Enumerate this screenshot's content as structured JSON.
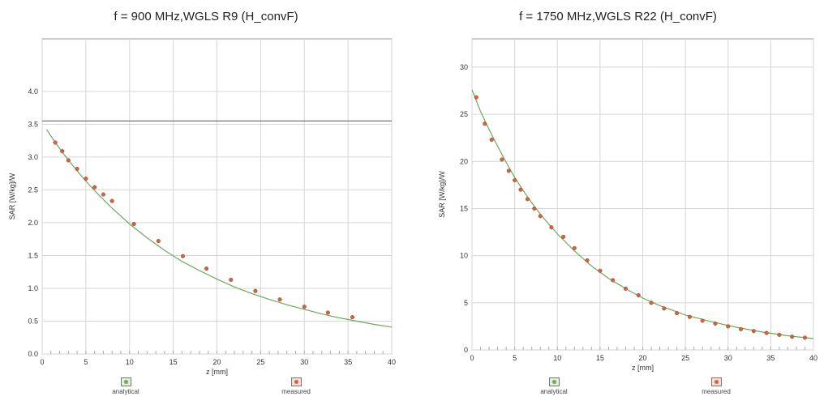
{
  "chart_data": [
    {
      "type": "scatter",
      "title": "f = 900 MHz,WGLS R9 (H_convF)",
      "xlabel": "z [mm]",
      "ylabel": "SAR [W/kg]/W",
      "xlim": [
        0,
        40
      ],
      "ylim": [
        0,
        4.8
      ],
      "xticks": [
        0,
        5,
        10,
        15,
        20,
        25,
        30,
        35,
        40
      ],
      "yticks": [
        "0.0",
        "0.5",
        "1.0",
        "1.5",
        "2.0",
        "2.5",
        "3.0",
        "3.5",
        "4.0"
      ],
      "grid": true,
      "legend_position": "bottom",
      "series": [
        {
          "name": "analytical",
          "kind": "line",
          "color": "#6fa85a",
          "x": [
            0.5,
            1.5,
            2.5,
            3.5,
            4.5,
            5.5,
            6.5,
            8,
            10,
            12,
            14,
            16,
            18,
            20,
            22,
            24,
            26,
            28,
            30,
            32,
            34,
            36,
            38,
            40
          ],
          "y": [
            3.42,
            3.22,
            3.04,
            2.87,
            2.71,
            2.56,
            2.42,
            2.22,
            1.98,
            1.77,
            1.58,
            1.41,
            1.27,
            1.14,
            1.02,
            0.92,
            0.83,
            0.75,
            0.68,
            0.61,
            0.55,
            0.5,
            0.45,
            0.41
          ]
        },
        {
          "name": "measured",
          "kind": "points",
          "color": "#d9623b",
          "x": [
            1.5,
            2.3,
            3.0,
            4.0,
            5.0,
            6.0,
            7.0,
            8.0,
            10.5,
            13.3,
            16.1,
            18.8,
            21.6,
            24.4,
            27.2,
            30.0,
            32.7,
            35.5
          ],
          "y": [
            3.22,
            3.09,
            2.95,
            2.82,
            2.67,
            2.54,
            2.43,
            2.33,
            1.98,
            1.72,
            1.49,
            1.3,
            1.13,
            0.96,
            0.83,
            0.72,
            0.63,
            0.56
          ]
        }
      ]
    },
    {
      "type": "scatter",
      "title": "f = 1750 MHz,WGLS R22 (H_convF)",
      "xlabel": "z [mm]",
      "ylabel": "SAR [W/kg]/W",
      "xlim": [
        0,
        40
      ],
      "ylim": [
        0,
        33
      ],
      "xticks": [
        0,
        5,
        10,
        15,
        20,
        25,
        30,
        35,
        40
      ],
      "yticks": [
        "0",
        "5",
        "10",
        "15",
        "20",
        "25",
        "30"
      ],
      "grid": true,
      "legend_position": "bottom",
      "series": [
        {
          "name": "analytical",
          "kind": "line",
          "color": "#6fa85a",
          "x": [
            0,
            1,
            2,
            3,
            4,
            5,
            6,
            7,
            8,
            10,
            12,
            14,
            16,
            18,
            20,
            22,
            25,
            28,
            31,
            34,
            37,
            40
          ],
          "y": [
            27.6,
            25.3,
            23.4,
            21.6,
            19.9,
            18.3,
            16.9,
            15.6,
            14.4,
            12.3,
            10.5,
            8.9,
            7.6,
            6.5,
            5.5,
            4.7,
            3.7,
            3.0,
            2.4,
            1.9,
            1.5,
            1.2
          ]
        },
        {
          "name": "measured",
          "kind": "points",
          "color": "#d9623b",
          "x": [
            0.5,
            1.5,
            2.3,
            3.5,
            4.3,
            5.0,
            5.7,
            6.5,
            7.3,
            8.0,
            9.3,
            10.7,
            12.0,
            13.5,
            15.0,
            16.5,
            18.0,
            19.5,
            21.0,
            22.5,
            24.0,
            25.5,
            27.0,
            28.5,
            30.0,
            31.5,
            33.0,
            34.5,
            36.0,
            37.5,
            39.0
          ],
          "y": [
            26.8,
            24.0,
            22.3,
            20.2,
            19.0,
            18.0,
            17.0,
            16.0,
            15.0,
            14.2,
            13.0,
            12.0,
            10.8,
            9.5,
            8.4,
            7.4,
            6.5,
            5.8,
            5.0,
            4.4,
            3.9,
            3.5,
            3.1,
            2.8,
            2.5,
            2.2,
            2.0,
            1.8,
            1.6,
            1.4,
            1.3
          ]
        }
      ]
    }
  ],
  "legend": [
    [
      {
        "label": "analytical",
        "color": "#6fa85a",
        "swatch_bg": "#dff0d6"
      },
      {
        "label": "measured",
        "color": "#d9623b",
        "swatch_bg": "#f6ddd5"
      }
    ],
    [
      {
        "label": "analytical",
        "color": "#6fa85a",
        "swatch_bg": "#dff0d6"
      },
      {
        "label": "measured",
        "color": "#d9623b",
        "swatch_bg": "#f6ddd5"
      }
    ]
  ]
}
